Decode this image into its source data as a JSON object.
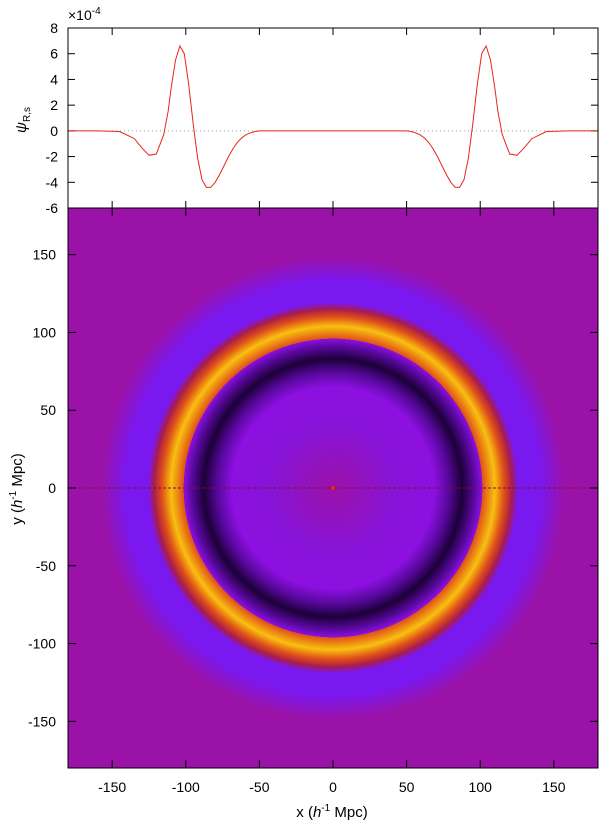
{
  "chart_data": [
    {
      "type": "line",
      "title": "",
      "xlabel": "",
      "ylabel": "ψR,s",
      "ylabel_main": "ψ",
      "ylabel_sub": "R,s",
      "y_multiplier": "×10",
      "y_multiplier_exp": "-4",
      "xlim": [
        -180,
        180
      ],
      "ylim": [
        -6,
        8
      ],
      "y_ticks": [
        -6,
        -4,
        -2,
        0,
        2,
        4,
        6,
        8
      ],
      "x_ticks": [
        -150,
        -100,
        -50,
        0,
        50,
        100,
        150
      ],
      "zero_line": "dotted",
      "series": [
        {
          "color": "#e8251b",
          "x": [
            -180,
            -160,
            -145,
            -135,
            -130,
            -125,
            -120,
            -115,
            -112,
            -110,
            -107,
            -104,
            -101,
            -98,
            -95,
            -92,
            -89,
            -86,
            -83,
            -80,
            -77,
            -74,
            -71,
            -68,
            -65,
            -62,
            -59,
            -56,
            -53,
            -50,
            -45,
            -40,
            -30,
            -20,
            -10,
            0,
            10,
            20,
            30,
            40,
            45,
            50,
            53,
            56,
            59,
            62,
            65,
            68,
            71,
            74,
            77,
            80,
            83,
            86,
            89,
            92,
            95,
            98,
            101,
            104,
            107,
            110,
            112,
            115,
            120,
            125,
            130,
            135,
            145,
            160,
            180
          ],
          "y": [
            0,
            0,
            -0.05,
            -0.6,
            -1.3,
            -1.9,
            -1.8,
            -0.3,
            1.5,
            3.3,
            5.5,
            6.6,
            6.0,
            3.6,
            0.6,
            -2.1,
            -3.8,
            -4.4,
            -4.4,
            -4.0,
            -3.4,
            -2.7,
            -2.0,
            -1.4,
            -0.9,
            -0.55,
            -0.3,
            -0.15,
            -0.05,
            0,
            0,
            0,
            0,
            0,
            0,
            0,
            0,
            0,
            0,
            0,
            0,
            0,
            -0.05,
            -0.15,
            -0.3,
            -0.55,
            -0.9,
            -1.4,
            -2.0,
            -2.7,
            -3.4,
            -4.0,
            -4.4,
            -4.4,
            -3.8,
            -2.1,
            0.6,
            3.6,
            6.0,
            6.6,
            5.5,
            3.3,
            1.5,
            -0.3,
            -1.8,
            -1.9,
            -1.3,
            -0.6,
            -0.05,
            0,
            0
          ]
        }
      ]
    },
    {
      "type": "heatmap",
      "title": "",
      "xlabel": "x (h-1 Mpc)",
      "xlabel_parts": [
        "x (",
        "h",
        "-1",
        " Mpc)"
      ],
      "ylabel": "y (h-1 Mpc)",
      "ylabel_parts": [
        "y (",
        "h",
        "-1",
        " Mpc)"
      ],
      "xlim": [
        -180,
        180
      ],
      "ylim": [
        -180,
        180
      ],
      "x_ticks": [
        -150,
        -100,
        -50,
        0,
        50,
        100,
        150
      ],
      "y_ticks": [
        -150,
        -100,
        -50,
        0,
        50,
        100,
        150
      ],
      "background_color": "#9a12a8",
      "rings": [
        {
          "radius": 104,
          "width": 11,
          "kind": "positive-peak",
          "colors": [
            "#a81c4c",
            "#e05018",
            "#f8c010"
          ]
        },
        {
          "radius": 83,
          "width": 10,
          "kind": "negative-trough",
          "colors": [
            "#8c10e0",
            "#5a08a0",
            "#1c0038"
          ]
        },
        {
          "radius": 125,
          "width": 9,
          "kind": "outer-halo",
          "colors": [
            "#7a18f0"
          ]
        },
        {
          "radius": 40,
          "width": 40,
          "kind": "inner-halo",
          "colors": [
            "#8814d8"
          ]
        }
      ],
      "center_marker": {
        "x": 0,
        "y": 0,
        "color": "#e8251b"
      },
      "cut_line": {
        "y": 0,
        "style": "dashed",
        "color": "#7a1030"
      }
    }
  ]
}
